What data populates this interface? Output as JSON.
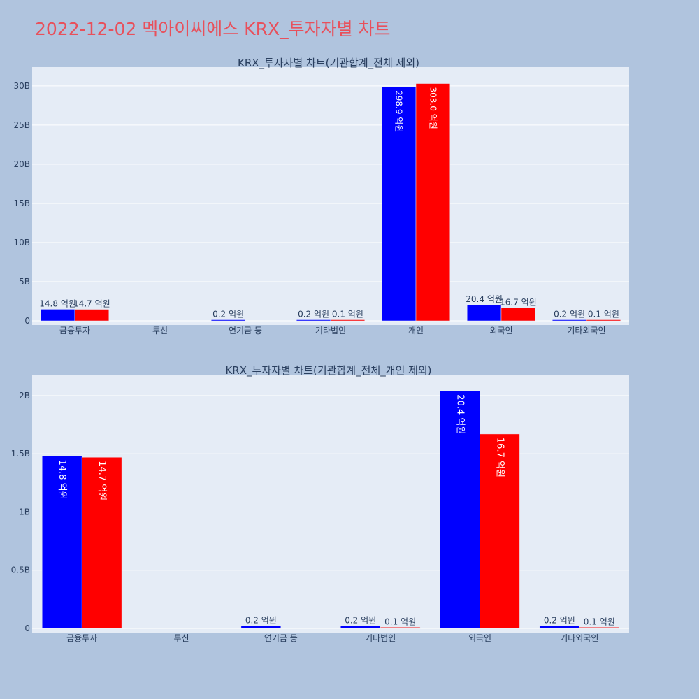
{
  "page_title": "2022-12-02 멕아이씨에스 KRX_투자자별 차트",
  "colors": {
    "background": "#b0c4de",
    "plot_bg": "#e5ecf6",
    "title": "#e8505b",
    "series_a": "#0000ff",
    "series_b": "#ff0000"
  },
  "chart_data": [
    {
      "type": "bar",
      "title": "KRX_투자자별 차트(기관합계_전체 제외)",
      "categories": [
        "금융투자",
        "투신",
        "연기금 등",
        "기타법인",
        "개인",
        "외국인",
        "기타외국인"
      ],
      "series": [
        {
          "values": [
            1480000000,
            0,
            20000000,
            20000000,
            29890000000,
            2040000000,
            20000000
          ],
          "labels": [
            "14.8 억원",
            "",
            "0.2 억원",
            "0.2 억원",
            "298.9 억원",
            "20.4 억원",
            "0.2 억원"
          ]
        },
        {
          "values": [
            1470000000,
            0,
            0,
            10000000,
            30300000000,
            1670000000,
            10000000
          ],
          "labels": [
            "14.7 억원",
            "",
            "",
            "0.1 억원",
            "303.0 억원",
            "16.7 억원",
            "0.1 억원"
          ]
        }
      ],
      "ylim": [
        0,
        32400000000
      ],
      "yticks": [
        0,
        5000000000,
        10000000000,
        15000000000,
        20000000000,
        25000000000,
        30000000000
      ],
      "ytick_labels": [
        "0",
        "5B",
        "10B",
        "15B",
        "20B",
        "25B",
        "30B"
      ],
      "xlabel": "",
      "ylabel": "",
      "grid": true
    },
    {
      "type": "bar",
      "title": "KRX_투자자별 차트(기관합계_전체_개인 제외)",
      "categories": [
        "금융투자",
        "투신",
        "연기금 등",
        "기타법인",
        "외국인",
        "기타외국인"
      ],
      "series": [
        {
          "values": [
            1480000000,
            0,
            20000000,
            20000000,
            2040000000,
            20000000
          ],
          "labels": [
            "14.8 억원",
            "",
            "0.2 억원",
            "0.2 억원",
            "20.4 억원",
            "0.2 억원"
          ]
        },
        {
          "values": [
            1470000000,
            0,
            0,
            10000000,
            1670000000,
            10000000
          ],
          "labels": [
            "14.7 억원",
            "",
            "",
            "0.1 억원",
            "16.7 억원",
            "0.1 억원"
          ]
        }
      ],
      "ylim": [
        0,
        2180000000
      ],
      "yticks": [
        0,
        500000000,
        1000000000,
        1500000000,
        2000000000
      ],
      "ytick_labels": [
        "0",
        "0.5B",
        "1B",
        "1.5B",
        "2B"
      ],
      "xlabel": "",
      "ylabel": "",
      "grid": true
    }
  ]
}
